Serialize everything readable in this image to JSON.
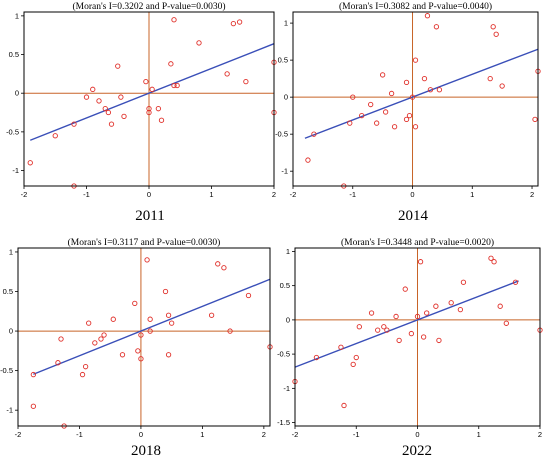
{
  "figure": {
    "colors": {
      "points": "#e0302a",
      "regression_line": "#3a4fb8",
      "reference_lines": "#c86428",
      "frame": "#000000"
    }
  },
  "chart_data": [
    {
      "type": "scatter",
      "title": "(Moran's I=0.3202 and P-value=0.0030)",
      "caption": "2011",
      "xlim": [
        -2,
        2
      ],
      "ylim": [
        -1.2,
        1.05
      ],
      "xticks": [
        -2,
        -1,
        0,
        1,
        2
      ],
      "yticks": [
        -1,
        -0.5,
        0,
        0.5,
        1
      ],
      "xtick_labels": [
        "-2",
        "-1",
        "0",
        "1",
        "2"
      ],
      "ytick_labels": [
        "-1",
        "-0.5",
        "0",
        "0.5",
        "1"
      ],
      "regression": {
        "slope": 0.3202,
        "intercept": 0.0,
        "x_range": [
          -1.9,
          2
        ]
      },
      "x": [
        -1.9,
        -1.5,
        -1.2,
        -1.2,
        -1.0,
        -0.9,
        -0.8,
        -0.7,
        -0.65,
        -0.6,
        -0.5,
        -0.45,
        -0.4,
        -0.05,
        0.0,
        0.05,
        0.0,
        0.15,
        0.2,
        0.35,
        0.4,
        0.4,
        0.45,
        0.8,
        1.25,
        1.35,
        1.45,
        1.55,
        2.0,
        2.0
      ],
      "y": [
        -0.9,
        -0.55,
        -1.2,
        -0.4,
        -0.05,
        0.05,
        -0.1,
        -0.2,
        -0.25,
        -0.4,
        0.35,
        -0.05,
        -0.3,
        0.15,
        -0.25,
        0.05,
        -0.2,
        -0.2,
        -0.35,
        0.38,
        0.1,
        0.95,
        0.1,
        0.65,
        0.25,
        0.9,
        0.92,
        0.15,
        0.4,
        -0.25
      ]
    },
    {
      "type": "scatter",
      "title": "(Moran's I=0.3082 and P-value=0.0040)",
      "caption": "2014",
      "xlim": [
        -2,
        2.1
      ],
      "ylim": [
        -1.2,
        1.15
      ],
      "xticks": [
        -2,
        -1,
        0,
        1,
        2
      ],
      "yticks": [
        -1,
        -0.5,
        0,
        0.5,
        1
      ],
      "xtick_labels": [
        "-2",
        "-1",
        "0",
        "1",
        "2"
      ],
      "ytick_labels": [
        "-1",
        "-0.5",
        "0",
        "0.5",
        "1"
      ],
      "regression": {
        "slope": 0.3082,
        "intercept": 0.0,
        "x_range": [
          -1.8,
          2.1
        ]
      },
      "x": [
        -1.75,
        -1.65,
        -1.15,
        -1.05,
        -1.0,
        -0.85,
        -0.7,
        -0.6,
        -0.5,
        -0.45,
        -0.35,
        -0.3,
        -0.1,
        -0.1,
        -0.05,
        0.0,
        0.05,
        0.05,
        0.2,
        0.25,
        0.3,
        0.4,
        0.45,
        1.3,
        1.35,
        1.4,
        1.5,
        2.05,
        2.1
      ],
      "y": [
        -0.85,
        -0.5,
        -1.2,
        -0.35,
        0.0,
        -0.25,
        -0.1,
        -0.35,
        0.3,
        -0.2,
        0.05,
        -0.4,
        -0.3,
        0.2,
        -0.25,
        0.0,
        0.5,
        -0.4,
        0.25,
        1.1,
        0.1,
        0.95,
        0.1,
        0.25,
        0.95,
        0.85,
        0.15,
        -0.3,
        0.35
      ]
    },
    {
      "type": "scatter",
      "title": "(Moran's I=0.3117 and P-value=0.0030)",
      "caption": "2018",
      "xlim": [
        -2,
        2.1
      ],
      "ylim": [
        -1.2,
        1.05
      ],
      "xticks": [
        -2,
        -1,
        0,
        1,
        2
      ],
      "yticks": [
        -1,
        -0.5,
        0,
        0.5,
        1
      ],
      "xtick_labels": [
        "-2",
        "-1",
        "0",
        "1",
        "2"
      ],
      "ytick_labels": [
        "-1",
        "-0.5",
        "0",
        "0.5",
        "1"
      ],
      "regression": {
        "slope": 0.3117,
        "intercept": 0.0,
        "x_range": [
          -1.75,
          2.1
        ]
      },
      "x": [
        -1.75,
        -1.75,
        -1.35,
        -1.3,
        -1.25,
        -0.95,
        -0.9,
        -0.85,
        -0.75,
        -0.65,
        -0.6,
        -0.45,
        -0.3,
        -0.1,
        -0.05,
        0.0,
        0.0,
        0.1,
        0.15,
        0.15,
        0.4,
        0.45,
        0.45,
        0.5,
        1.15,
        1.25,
        1.35,
        1.45,
        1.75,
        2.1
      ],
      "y": [
        -0.55,
        -0.95,
        -0.4,
        -0.1,
        -1.2,
        -0.55,
        -0.45,
        0.1,
        -0.15,
        -0.1,
        -0.05,
        0.15,
        -0.3,
        0.35,
        -0.25,
        -0.35,
        -0.05,
        0.9,
        0.15,
        0.0,
        0.5,
        0.2,
        -0.3,
        0.1,
        0.2,
        0.85,
        0.8,
        0.0,
        0.45,
        -0.2
      ]
    },
    {
      "type": "scatter",
      "title": "(Moran's I=0.3448 and P-value=0.0020)",
      "caption": "2022",
      "xlim": [
        -2,
        2
      ],
      "ylim": [
        -1.55,
        1.05
      ],
      "xticks": [
        -2,
        -1,
        0,
        1,
        2
      ],
      "yticks": [
        -1.5,
        -1,
        -0.5,
        0,
        0.5,
        1
      ],
      "xtick_labels": [
        "-2",
        "-1",
        "0",
        "1",
        "2"
      ],
      "ytick_labels": [
        "-1.5",
        "-1",
        "-0.5",
        "0",
        "0.5",
        "1"
      ],
      "regression": {
        "slope": 0.3448,
        "intercept": 0.0,
        "x_range": [
          -2,
          1.65
        ]
      },
      "x": [
        -2.0,
        -1.65,
        -1.25,
        -1.2,
        -1.05,
        -1.0,
        -0.95,
        -0.75,
        -0.65,
        -0.55,
        -0.5,
        -0.35,
        -0.3,
        -0.2,
        -0.1,
        0.0,
        0.05,
        0.1,
        0.15,
        0.3,
        0.35,
        0.55,
        0.7,
        0.75,
        1.2,
        1.25,
        1.35,
        1.45,
        1.6,
        2.0
      ],
      "y": [
        -0.9,
        -0.55,
        -0.4,
        -1.25,
        -0.65,
        -0.55,
        -0.1,
        0.1,
        -0.15,
        -0.1,
        -0.15,
        0.05,
        -0.3,
        0.45,
        -0.2,
        0.05,
        0.85,
        -0.25,
        0.1,
        0.2,
        -0.3,
        0.25,
        0.15,
        0.55,
        0.9,
        0.85,
        0.2,
        -0.05,
        0.55,
        -0.15
      ]
    }
  ]
}
